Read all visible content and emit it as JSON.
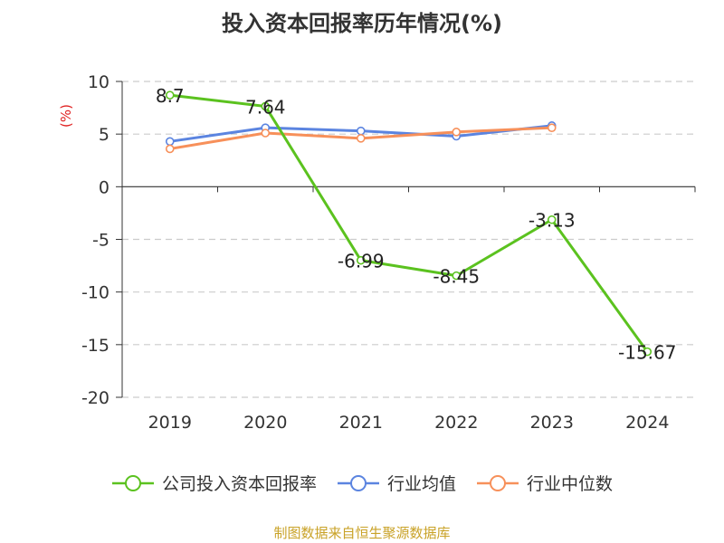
{
  "title": "投入资本回报率历年情况(%)",
  "source": "制图数据来自恒生聚源数据库",
  "colors": {
    "source": "#c9a227",
    "axis_label": "#e02020"
  },
  "chart_data": {
    "type": "line",
    "title": "投入资本回报率历年情况(%)",
    "ylabel": "(%)",
    "xlabel": "",
    "categories": [
      "2019",
      "2020",
      "2021",
      "2022",
      "2023",
      "2024"
    ],
    "ylim": [
      -20,
      10
    ],
    "yticks": [
      10,
      5,
      0,
      -5,
      -10,
      -15,
      -20
    ],
    "grid": "horizontal-dashed",
    "legend_position": "bottom",
    "series": [
      {
        "name": "公司投入资本回报率",
        "color": "#5bc21f",
        "values": [
          8.7,
          7.64,
          -6.99,
          -8.45,
          -3.13,
          -15.67
        ],
        "labels": [
          "8.7",
          "7.64",
          "-6.99",
          "-8.45",
          "-3.13",
          "-15.67"
        ]
      },
      {
        "name": "行业均值",
        "color": "#5b84e0",
        "values": [
          4.3,
          5.6,
          5.3,
          4.8,
          5.8,
          null
        ]
      },
      {
        "name": "行业中位数",
        "color": "#f7905a",
        "values": [
          3.6,
          5.1,
          4.6,
          5.2,
          5.6,
          null
        ]
      }
    ]
  }
}
